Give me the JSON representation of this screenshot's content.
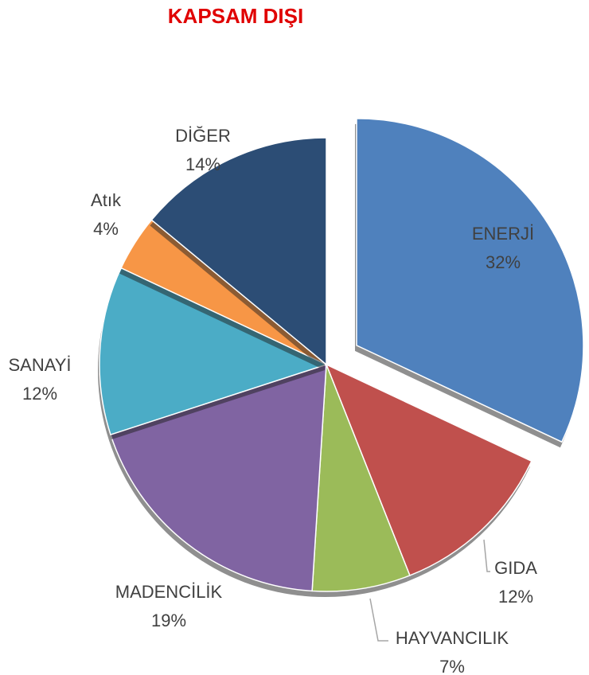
{
  "chart_data": {
    "type": "pie",
    "title": "KAPSAM DIŞI",
    "categories": [
      "ENERJİ",
      "GIDA",
      "HAYVANCILIK",
      "MADENCİLİK",
      "SANAYİ",
      "Atık",
      "DİĞER"
    ],
    "values": [
      32,
      12,
      7,
      19,
      12,
      4,
      14
    ],
    "value_labels": [
      "32%",
      "12%",
      "7%",
      "19%",
      "12%",
      "4%",
      "14%"
    ],
    "colors": [
      "#4f81bd",
      "#c0504d",
      "#9bbb59",
      "#8064a2",
      "#4bacc6",
      "#f79646",
      "#2c4d75"
    ]
  }
}
